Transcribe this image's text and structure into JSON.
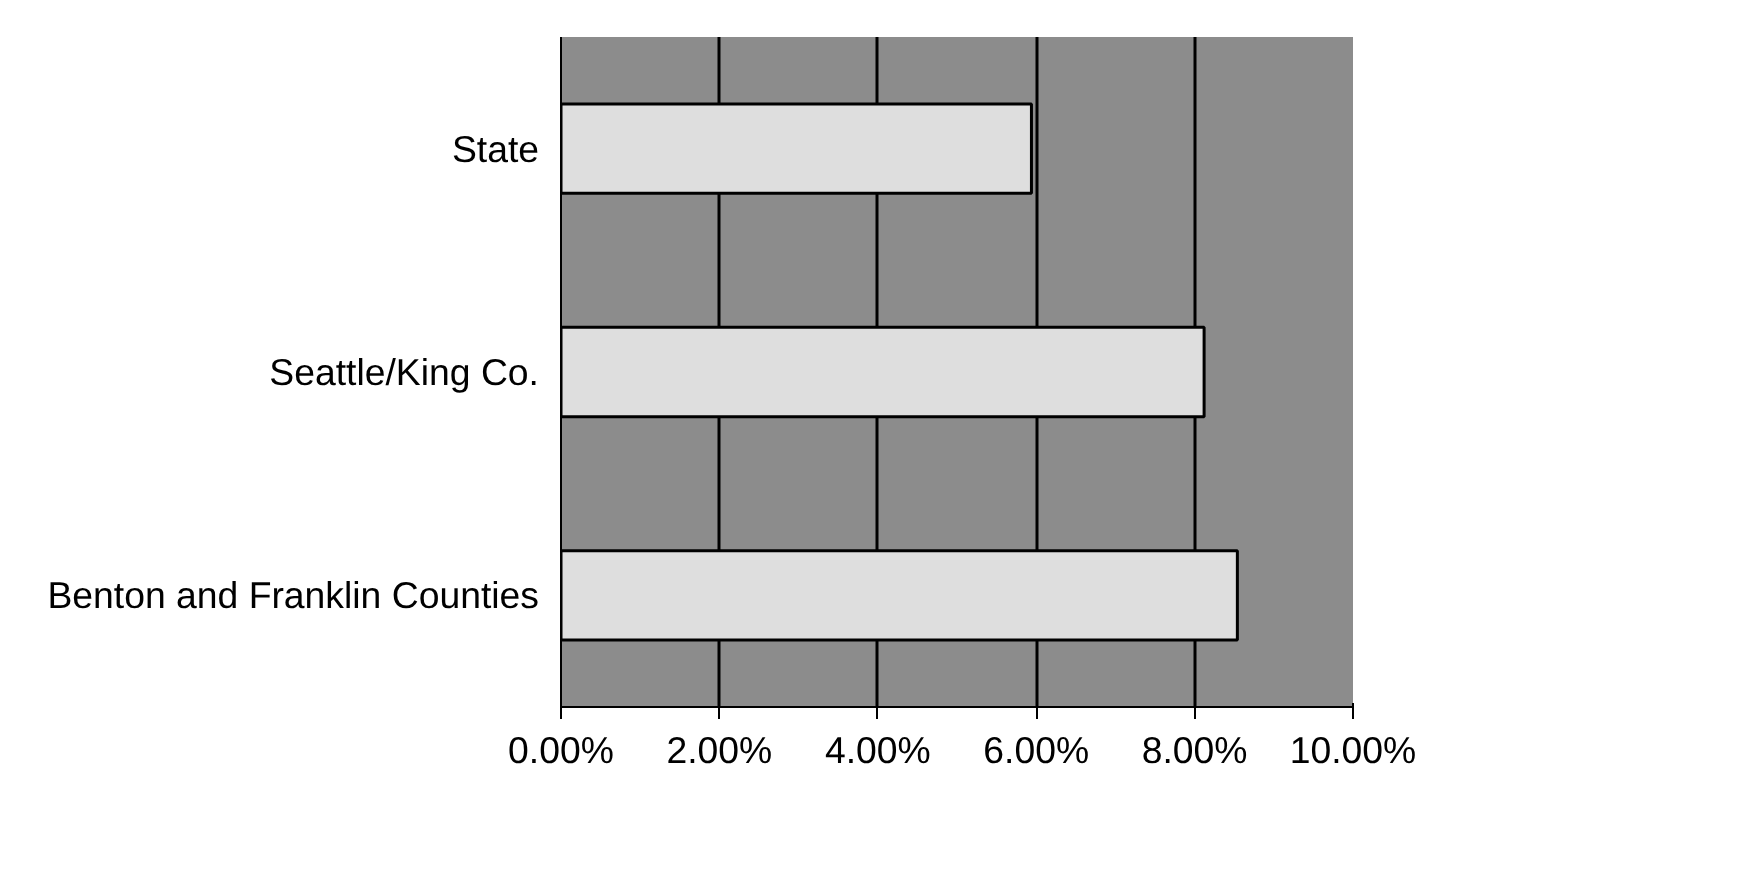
{
  "chart_data": {
    "type": "bar",
    "orientation": "horizontal",
    "categories": [
      "State",
      "Seattle/King Co.",
      "Benton and Franklin Counties"
    ],
    "values": [
      5.94,
      8.12,
      8.54
    ],
    "color": "#dedede",
    "xlim": [
      0,
      10
    ],
    "xticks": [
      {
        "value": 0,
        "label": "0.00%"
      },
      {
        "value": 2,
        "label": "2.00%"
      },
      {
        "value": 4,
        "label": "4.00%"
      },
      {
        "value": 6,
        "label": "6.00%"
      },
      {
        "value": 8,
        "label": "8.00%"
      },
      {
        "value": 10,
        "label": "10.00%"
      }
    ],
    "grid": "x"
  }
}
